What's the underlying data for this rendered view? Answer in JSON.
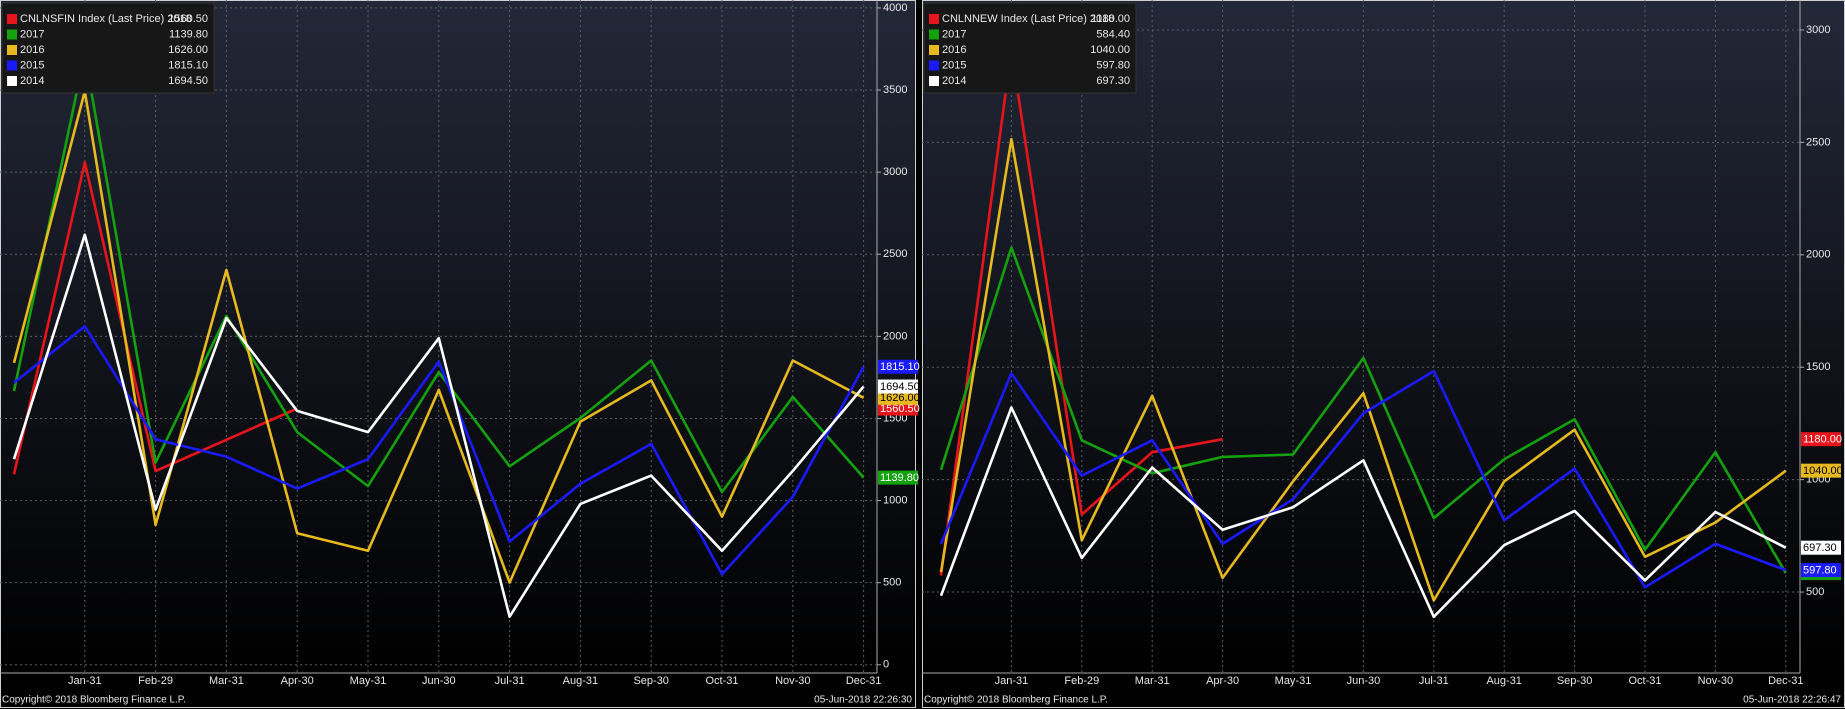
{
  "chart_data": [
    {
      "type": "line",
      "categories": [
        null,
        "Jan-31",
        "Feb-29",
        "Mar-31",
        "Apr-30",
        "May-31",
        "Jun-30",
        "Jul-31",
        "Aug-31",
        "Sep-30",
        "Oct-31",
        "Nov-30",
        "Dec-31"
      ],
      "ylim": [
        -50,
        4030
      ],
      "yticks": [
        0,
        500,
        1000,
        1500,
        2000,
        2500,
        3000,
        3500,
        4000
      ],
      "grid": true,
      "legend": "top-left",
      "footer_left": "Copyright© 2018 Bloomberg Finance L.P.",
      "footer_right": "05-Jun-2018 22:26:30",
      "series": [
        {
          "name": "CNLNSFIN Index (Last Price) 2018",
          "color": "#e8141b",
          "last_label": "1560.50",
          "values": [
            1160,
            3060,
            1180,
            1370,
            1560.5,
            null,
            null,
            null,
            null,
            null,
            null,
            null,
            null
          ]
        },
        {
          "name": "2017",
          "color": "#13a10e",
          "last_label": "1139.80",
          "values": [
            1667,
            3720,
            1231,
            2125,
            1417,
            1088,
            1782,
            1209,
            1503,
            1853,
            1052,
            1631,
            1139.8
          ]
        },
        {
          "name": "2016",
          "color": "#e6b91e",
          "last_label": "1626.00",
          "values": [
            1839,
            3492,
            852,
            2404,
            801,
            694,
            1674,
            501,
            1481,
            1732,
            902,
            1853,
            1626
          ]
        },
        {
          "name": "2015",
          "color": "#1a1aff",
          "last_label": "1815.10",
          "values": [
            1717,
            2061,
            1374,
            1267,
            1073,
            1252,
            1846,
            751,
            1102,
            1345,
            551,
            1023,
            1815.1
          ]
        },
        {
          "name": "2014",
          "color": "#ffffff",
          "last_label": "1694.50",
          "values": [
            1252,
            2619,
            945,
            2111,
            1546,
            1417,
            1989,
            293,
            980,
            1152,
            694,
            1181,
            1694.5
          ]
        }
      ]
    },
    {
      "type": "line",
      "categories": [
        null,
        "Jan-31",
        "Feb-29",
        "Mar-31",
        "Apr-30",
        "May-31",
        "Jun-30",
        "Jul-31",
        "Aug-31",
        "Sep-30",
        "Oct-31",
        "Nov-30",
        "Dec-31"
      ],
      "ylim": [
        140,
        3120
      ],
      "yticks": [
        500,
        1000,
        1500,
        2000,
        2500,
        3000
      ],
      "grid": true,
      "legend": "top-left",
      "footer_left": "Copyright© 2018 Bloomberg Finance L.P.",
      "footer_right": "05-Jun-2018 22:26:47",
      "series": [
        {
          "name": "CNLNNEW Index (Last Price) 2018",
          "color": "#e8141b",
          "last_label": "1180.00",
          "values": [
            573,
            2911,
            845,
            1122,
            1180,
            null,
            null,
            null,
            null,
            null,
            null,
            null,
            null
          ]
        },
        {
          "name": "2017",
          "color": "#13a10e",
          "last_label": "584.40",
          "values": [
            1044,
            2032,
            1175,
            1028,
            1101,
            1112,
            1541,
            829,
            1091,
            1269,
            688,
            1122,
            584.4
          ]
        },
        {
          "name": "2016",
          "color": "#e6b91e",
          "last_label": "1040.00",
          "values": [
            589,
            2514,
            730,
            1373,
            563,
            992,
            1384,
            463,
            992,
            1222,
            657,
            809,
            1040
          ]
        },
        {
          "name": "2015",
          "color": "#1a1aff",
          "last_label": "597.80",
          "values": [
            714,
            1473,
            1018,
            1175,
            714,
            913,
            1295,
            1483,
            819,
            1049,
            521,
            714,
            597.8
          ]
        },
        {
          "name": "2014",
          "color": "#ffffff",
          "last_label": "697.30",
          "values": [
            484,
            1321,
            652,
            1054,
            777,
            877,
            1086,
            390,
            709,
            861,
            552,
            856,
            697.3
          ]
        }
      ]
    }
  ]
}
